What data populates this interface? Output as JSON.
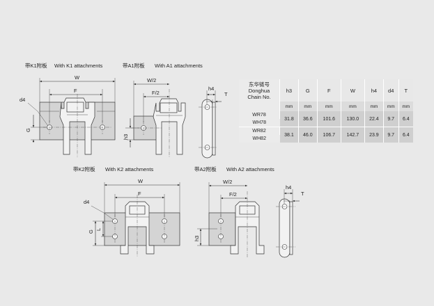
{
  "captions": {
    "k1": {
      "cn": "带K1附板",
      "en": "With K1 attachments"
    },
    "a1": {
      "cn": "带A1附板",
      "en": "With A1 attachments"
    },
    "k2": {
      "cn": "带K2附板",
      "en": "With K2 attachments"
    },
    "a2": {
      "cn": "带A2附板",
      "en": "With A2 attachments"
    }
  },
  "dims": {
    "W": "W",
    "F": "F",
    "W2": "W/2",
    "F2": "F/2",
    "d4": "d4",
    "G": "G",
    "L": "L",
    "h3": "h3",
    "h4": "h4",
    "T": "T"
  },
  "table": {
    "model_header": [
      "东华链号",
      "Donghua",
      "Chain No."
    ],
    "columns": [
      {
        "label": "h3",
        "unit": "mm"
      },
      {
        "label": "G",
        "unit": "mm"
      },
      {
        "label": "F",
        "unit": "mm"
      },
      {
        "label": "W",
        "unit": "mm"
      },
      {
        "label": "h4",
        "unit": "mm"
      },
      {
        "label": "d4",
        "unit": "mm"
      },
      {
        "label": "T",
        "unit": "mm"
      }
    ],
    "rows": [
      {
        "models": [
          "WR78",
          "WH78"
        ],
        "values": [
          "31.8",
          "36.6",
          "101.6",
          "130.0",
          "22.4",
          "9.7",
          "6.4"
        ]
      },
      {
        "models": [
          "WR82",
          "WH82"
        ],
        "values": [
          "38.1",
          "46.0",
          "106.7",
          "142.7",
          "23.9",
          "9.7",
          "6.4"
        ]
      }
    ]
  }
}
